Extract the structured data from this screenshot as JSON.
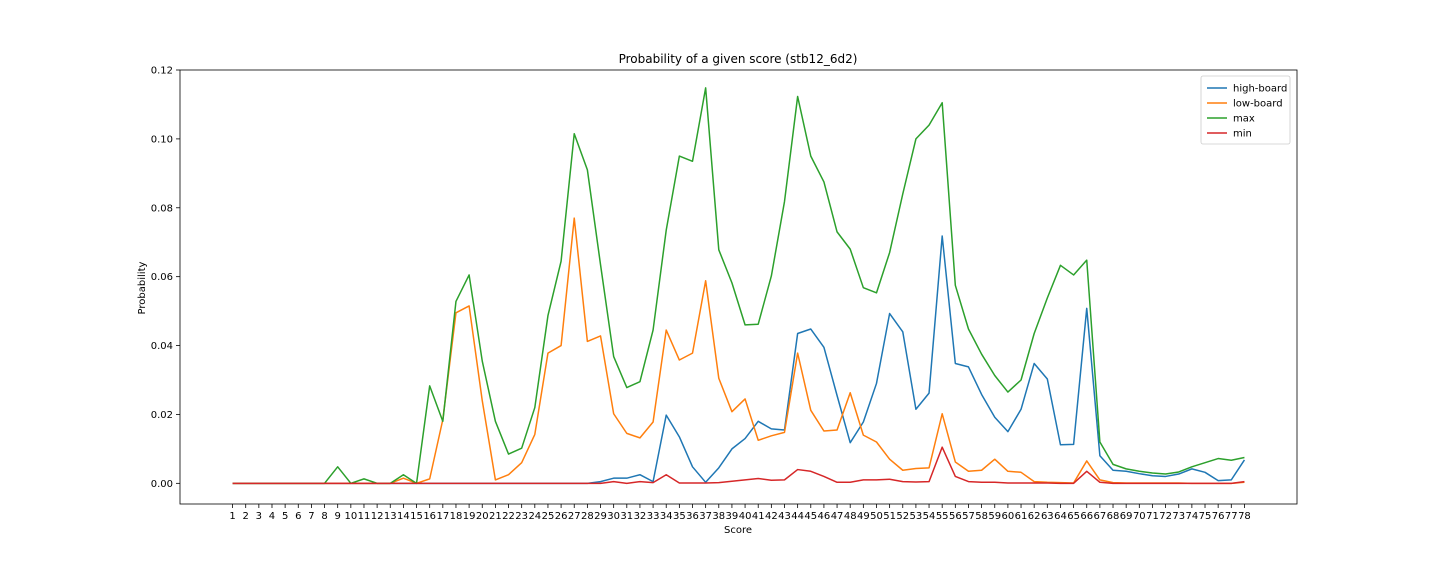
{
  "chart_data": {
    "type": "line",
    "title": "Probability of a given score (stb12_6d2)",
    "xlabel": "Score",
    "ylabel": "Probability",
    "xlim": [
      -3,
      82
    ],
    "ylim": [
      -0.006,
      0.12
    ],
    "yticks": [
      0.0,
      0.02,
      0.04,
      0.06,
      0.08,
      0.1,
      0.12
    ],
    "ytick_labels": [
      "0.00",
      "0.02",
      "0.04",
      "0.06",
      "0.08",
      "0.10",
      "0.12"
    ],
    "x": [
      1,
      2,
      3,
      4,
      5,
      6,
      7,
      8,
      9,
      10,
      11,
      12,
      13,
      14,
      15,
      16,
      17,
      18,
      19,
      20,
      21,
      22,
      23,
      24,
      25,
      26,
      27,
      28,
      29,
      30,
      31,
      32,
      33,
      34,
      35,
      36,
      37,
      38,
      39,
      40,
      41,
      42,
      43,
      44,
      45,
      46,
      47,
      48,
      49,
      50,
      51,
      52,
      53,
      54,
      55,
      56,
      57,
      58,
      59,
      60,
      61,
      62,
      63,
      64,
      65,
      66,
      67,
      68,
      69,
      70,
      71,
      72,
      73,
      74,
      75,
      76,
      77,
      78
    ],
    "grid": false,
    "legend_position": "top-right",
    "series": [
      {
        "name": "high-board",
        "color": "#1f77b4",
        "values": [
          0,
          0,
          0,
          0,
          0,
          0,
          0,
          0,
          0,
          0,
          0,
          0,
          0,
          0,
          0,
          0,
          0,
          0,
          0,
          0,
          0,
          0,
          0,
          0,
          0,
          0,
          0,
          0,
          0.0005,
          0.0015,
          0.0015,
          0.0025,
          0.0005,
          0.0198,
          0.0135,
          0.0048,
          0.0003,
          0.0045,
          0.01,
          0.013,
          0.018,
          0.0158,
          0.0155,
          0.0435,
          0.0448,
          0.0395,
          0.0255,
          0.0118,
          0.0178,
          0.029,
          0.0493,
          0.044,
          0.0215,
          0.0262,
          0.0718,
          0.0348,
          0.0338,
          0.0258,
          0.0192,
          0.015,
          0.0215,
          0.0348,
          0.0303,
          0.0112,
          0.0113,
          0.0508,
          0.008,
          0.0038,
          0.0035,
          0.0028,
          0.0022,
          0.002,
          0.0027,
          0.0042,
          0.0032,
          0.0008,
          0.001,
          0.0068
        ]
      },
      {
        "name": "low-board",
        "color": "#ff7f0e",
        "values": [
          0,
          0,
          0,
          0,
          0,
          0,
          0,
          0,
          0,
          0,
          0,
          0,
          0,
          0.0015,
          0,
          0.0013,
          0.0185,
          0.0495,
          0.0515,
          0.024,
          0.001,
          0.0025,
          0.006,
          0.0142,
          0.0378,
          0.04,
          0.077,
          0.0412,
          0.0428,
          0.0202,
          0.0145,
          0.0132,
          0.0178,
          0.0445,
          0.0358,
          0.0378,
          0.0588,
          0.0305,
          0.0208,
          0.0245,
          0.0125,
          0.0138,
          0.0148,
          0.0378,
          0.0212,
          0.0152,
          0.0155,
          0.0263,
          0.014,
          0.012,
          0.007,
          0.0038,
          0.0043,
          0.0045,
          0.0202,
          0.0062,
          0.0035,
          0.0038,
          0.007,
          0.0035,
          0.0032,
          0.0005,
          0.0003,
          0.0002,
          0.0001,
          0.0065,
          0.001,
          0.0002,
          0.0001,
          0.0001,
          0.0001,
          0.0001,
          0.0001,
          0,
          0,
          0,
          0,
          0.0003
        ]
      },
      {
        "name": "max",
        "color": "#2ca02c",
        "values": [
          0,
          0,
          0,
          0,
          0,
          0,
          0,
          0,
          0.0048,
          0,
          0.0013,
          0,
          0,
          0.0025,
          0,
          0.0283,
          0.018,
          0.0528,
          0.0605,
          0.0355,
          0.018,
          0.0085,
          0.0102,
          0.022,
          0.0487,
          0.0645,
          0.1015,
          0.091,
          0.0635,
          0.0368,
          0.0278,
          0.0295,
          0.0445,
          0.0735,
          0.095,
          0.0935,
          0.1148,
          0.0678,
          0.0582,
          0.046,
          0.0462,
          0.0602,
          0.0818,
          0.1123,
          0.095,
          0.0875,
          0.073,
          0.068,
          0.0568,
          0.0553,
          0.067,
          0.084,
          0.1,
          0.104,
          0.1105,
          0.0575,
          0.0448,
          0.0375,
          0.0313,
          0.0265,
          0.03,
          0.0435,
          0.0538,
          0.0633,
          0.0605,
          0.0648,
          0.012,
          0.0055,
          0.0042,
          0.0035,
          0.003,
          0.0027,
          0.0033,
          0.0048,
          0.006,
          0.0072,
          0.0067,
          0.0075
        ]
      },
      {
        "name": "min",
        "color": "#d62728",
        "values": [
          0,
          0,
          0,
          0,
          0,
          0,
          0,
          0,
          0,
          0,
          0,
          0,
          0,
          0,
          0,
          0,
          0,
          0,
          0,
          0,
          0,
          0,
          0,
          0,
          0,
          0,
          0,
          0,
          0,
          0.0005,
          0,
          0.0005,
          0.0002,
          0.0025,
          0.0001,
          0.0001,
          0.0001,
          0.0002,
          0.0006,
          0.001,
          0.0014,
          0.0009,
          0.001,
          0.004,
          0.0035,
          0.002,
          0.0003,
          0.0003,
          0.001,
          0.001,
          0.0012,
          0.0005,
          0.0004,
          0.0005,
          0.0105,
          0.002,
          0.0005,
          0.0003,
          0.0003,
          0.0001,
          0.0001,
          0.0001,
          0.0001,
          0,
          0,
          0.0035,
          0.0003,
          0,
          0,
          0,
          0,
          0,
          0,
          0,
          0,
          0,
          0,
          0.0005
        ]
      }
    ]
  }
}
